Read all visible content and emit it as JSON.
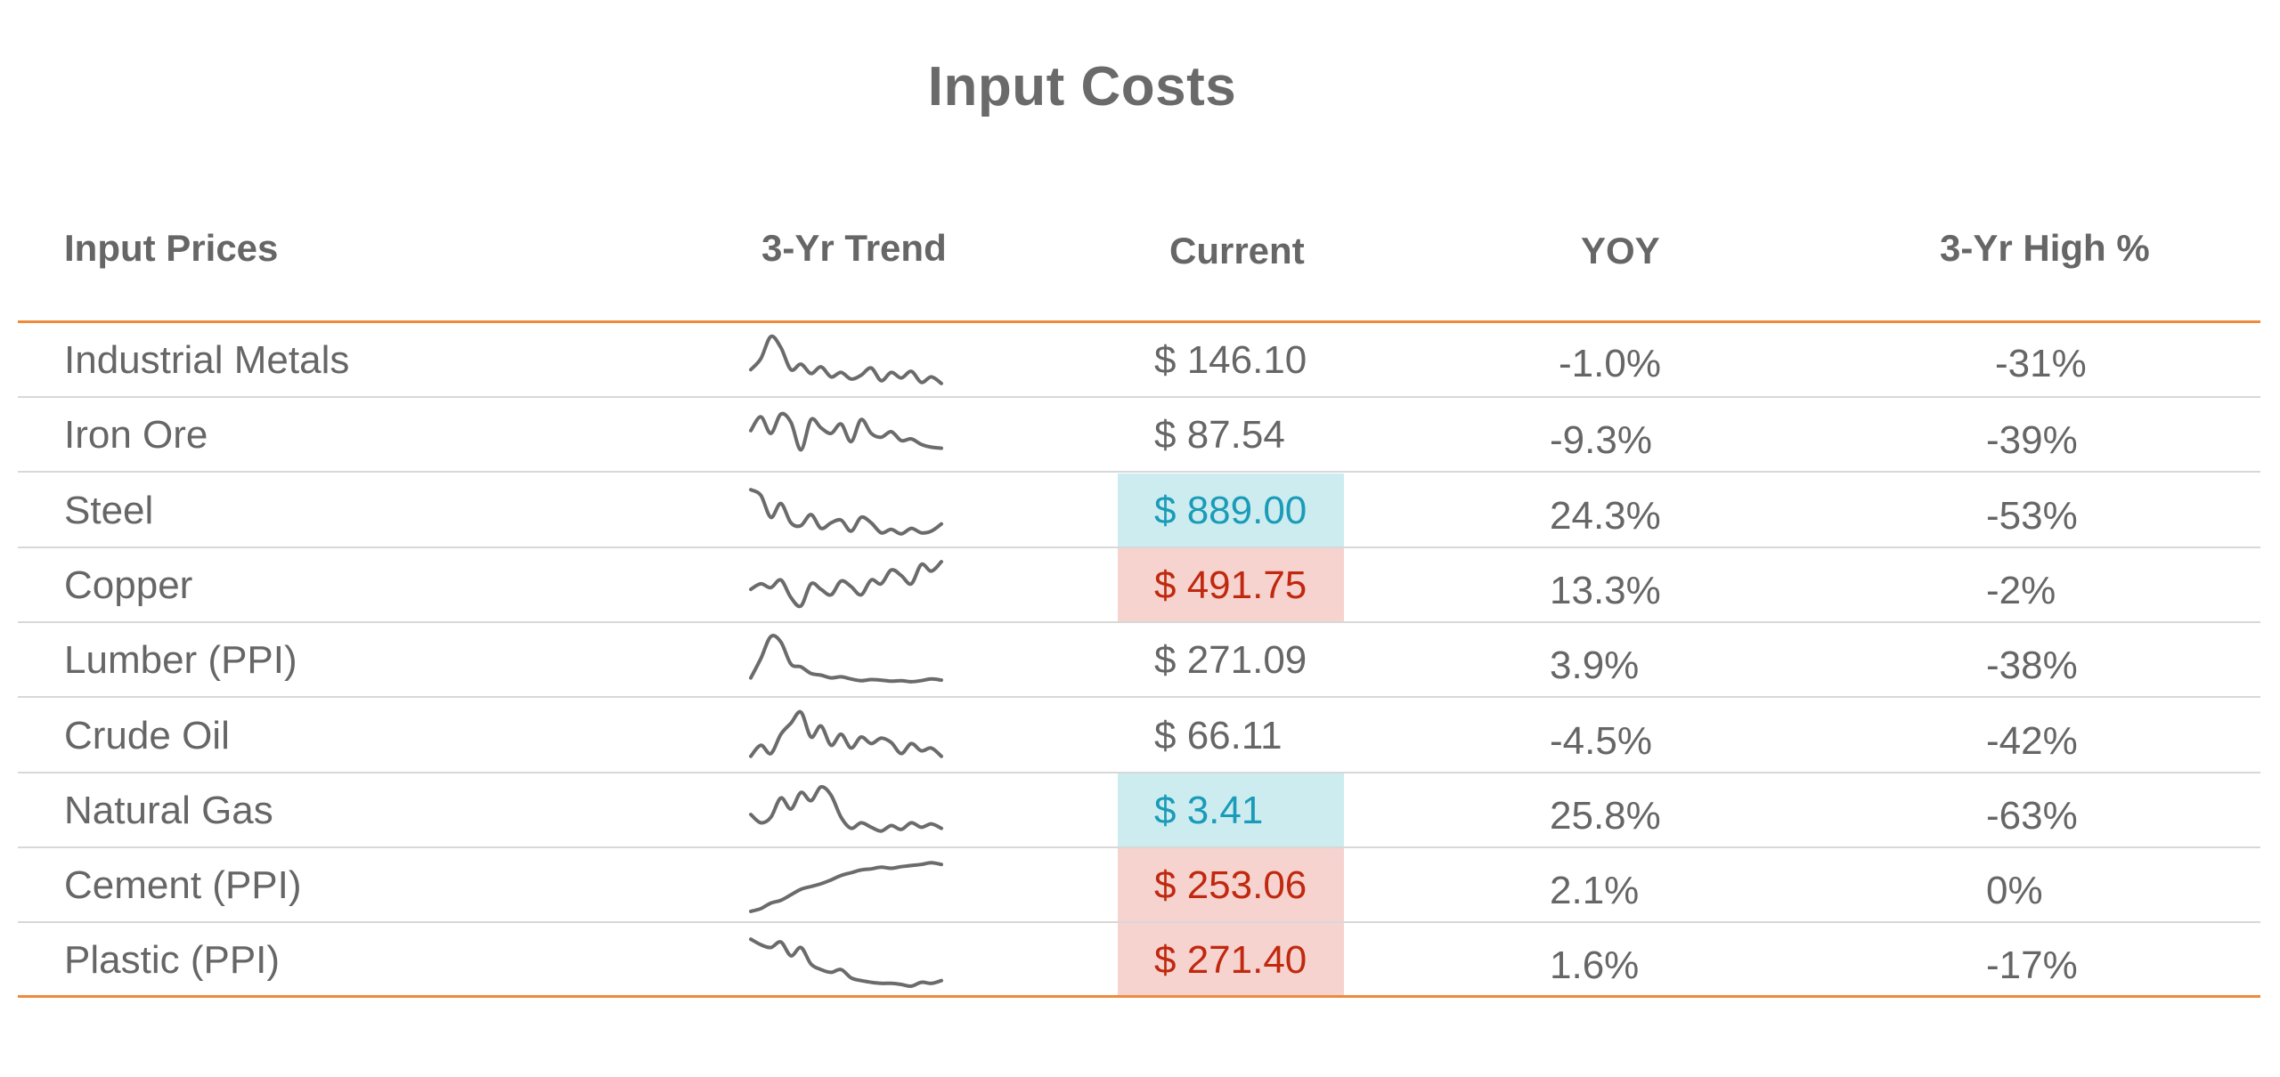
{
  "title": "Input Costs",
  "headers": {
    "label": "Input Prices",
    "trend": "3-Yr Trend",
    "current": "Current",
    "yoy": "YOY",
    "high": "3-Yr High %"
  },
  "colors": {
    "text": "#666666",
    "accent_rule": "#ef8a3c",
    "row_divider": "#d8d8d8",
    "low_bg": "#cdecf0",
    "low_text": "#1a9bb8",
    "high_bg": "#f6d3cf",
    "high_text": "#c0280f"
  },
  "chart_data": {
    "type": "table",
    "columns": [
      "Input Prices",
      "3-Yr Trend",
      "Current",
      "YOY",
      "3-Yr High %"
    ],
    "rows": [
      {
        "label": "Industrial Metals",
        "current": "$ 146.10",
        "yoy": "-1.0%",
        "high_pct": "-31%",
        "highlight": "none",
        "trend": [
          0.35,
          0.55,
          0.95,
          0.75,
          0.35,
          0.45,
          0.28,
          0.4,
          0.22,
          0.3,
          0.18,
          0.25,
          0.38,
          0.15,
          0.3,
          0.2,
          0.32,
          0.12,
          0.22,
          0.1
        ]
      },
      {
        "label": "Iron Ore",
        "current": "$ 87.54",
        "yoy": "-9.3%",
        "high_pct": "-39%",
        "highlight": "none",
        "trend": [
          0.6,
          0.85,
          0.55,
          0.9,
          0.75,
          0.25,
          0.8,
          0.65,
          0.55,
          0.72,
          0.4,
          0.8,
          0.55,
          0.48,
          0.58,
          0.42,
          0.45,
          0.35,
          0.3,
          0.28
        ]
      },
      {
        "label": "Steel",
        "current": "$ 889.00",
        "yoy": "24.3%",
        "high_pct": "-53%",
        "highlight": "low",
        "trend": [
          0.9,
          0.8,
          0.4,
          0.65,
          0.3,
          0.25,
          0.45,
          0.2,
          0.3,
          0.35,
          0.15,
          0.4,
          0.3,
          0.12,
          0.18,
          0.1,
          0.2,
          0.12,
          0.15,
          0.28
        ]
      },
      {
        "label": "Copper",
        "current": "$ 491.75",
        "yoy": "13.3%",
        "high_pct": "-2%",
        "highlight": "high",
        "trend": [
          0.45,
          0.55,
          0.48,
          0.62,
          0.3,
          0.15,
          0.55,
          0.45,
          0.35,
          0.6,
          0.5,
          0.35,
          0.62,
          0.55,
          0.8,
          0.7,
          0.55,
          0.9,
          0.78,
          0.95
        ]
      },
      {
        "label": "Lumber (PPI)",
        "current": "$ 271.09",
        "yoy": "3.9%",
        "high_pct": "-38%",
        "highlight": "none",
        "trend": [
          0.2,
          0.55,
          0.95,
          0.85,
          0.45,
          0.4,
          0.28,
          0.25,
          0.2,
          0.22,
          0.18,
          0.15,
          0.17,
          0.16,
          0.14,
          0.15,
          0.13,
          0.15,
          0.18,
          0.16
        ]
      },
      {
        "label": "Crude Oil",
        "current": "$ 66.11",
        "yoy": "-4.5%",
        "high_pct": "-42%",
        "highlight": "none",
        "trend": [
          0.15,
          0.35,
          0.2,
          0.55,
          0.75,
          0.95,
          0.5,
          0.7,
          0.35,
          0.55,
          0.3,
          0.5,
          0.38,
          0.48,
          0.4,
          0.2,
          0.38,
          0.25,
          0.3,
          0.15
        ]
      },
      {
        "label": "Natural Gas",
        "current": "$ 3.41",
        "yoy": "25.8%",
        "high_pct": "-63%",
        "highlight": "low",
        "trend": [
          0.45,
          0.3,
          0.4,
          0.75,
          0.55,
          0.85,
          0.7,
          0.95,
          0.8,
          0.4,
          0.2,
          0.3,
          0.22,
          0.15,
          0.25,
          0.18,
          0.3,
          0.22,
          0.28,
          0.2
        ]
      },
      {
        "label": "Cement (PPI)",
        "current": "$ 253.06",
        "yoy": "2.1%",
        "high_pct": "0%",
        "highlight": "high",
        "trend": [
          0.05,
          0.1,
          0.2,
          0.25,
          0.35,
          0.45,
          0.5,
          0.55,
          0.62,
          0.7,
          0.75,
          0.8,
          0.82,
          0.85,
          0.83,
          0.86,
          0.88,
          0.9,
          0.93,
          0.9
        ]
      },
      {
        "label": "Plastic (PPI)",
        "current": "$ 271.40",
        "yoy": "1.6%",
        "high_pct": "-17%",
        "highlight": "high",
        "trend": [
          0.9,
          0.8,
          0.75,
          0.85,
          0.6,
          0.75,
          0.45,
          0.35,
          0.3,
          0.35,
          0.2,
          0.15,
          0.12,
          0.1,
          0.1,
          0.08,
          0.05,
          0.12,
          0.1,
          0.15
        ]
      }
    ]
  }
}
